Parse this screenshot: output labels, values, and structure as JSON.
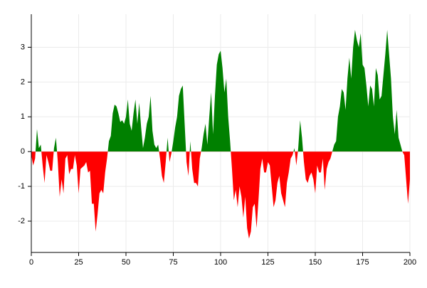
{
  "chart_data": {
    "type": "area",
    "x": [
      0,
      1,
      2,
      3,
      4,
      5,
      6,
      7,
      8,
      9,
      10,
      11,
      12,
      13,
      14,
      15,
      16,
      17,
      18,
      19,
      20,
      21,
      22,
      23,
      24,
      25,
      26,
      27,
      28,
      29,
      30,
      31,
      32,
      33,
      34,
      35,
      36,
      37,
      38,
      39,
      40,
      41,
      42,
      43,
      44,
      45,
      46,
      47,
      48,
      49,
      50,
      51,
      52,
      53,
      54,
      55,
      56,
      57,
      58,
      59,
      60,
      61,
      62,
      63,
      64,
      65,
      66,
      67,
      68,
      69,
      70,
      71,
      72,
      73,
      74,
      75,
      76,
      77,
      78,
      79,
      80,
      81,
      82,
      83,
      84,
      85,
      86,
      87,
      88,
      89,
      90,
      91,
      92,
      93,
      94,
      95,
      96,
      97,
      98,
      99,
      100,
      101,
      102,
      103,
      104,
      105,
      106,
      107,
      108,
      109,
      110,
      111,
      112,
      113,
      114,
      115,
      116,
      117,
      118,
      119,
      120,
      121,
      122,
      123,
      124,
      125,
      126,
      127,
      128,
      129,
      130,
      131,
      132,
      133,
      134,
      135,
      136,
      137,
      138,
      139,
      140,
      141,
      142,
      143,
      144,
      145,
      146,
      147,
      148,
      149,
      150,
      151,
      152,
      153,
      154,
      155,
      156,
      157,
      158,
      159,
      160,
      161,
      162,
      163,
      164,
      165,
      166,
      167,
      168,
      169,
      170,
      171,
      172,
      173,
      174,
      175,
      176,
      177,
      178,
      179,
      180,
      181,
      182,
      183,
      184,
      185,
      186,
      187,
      188,
      189,
      190,
      191,
      192,
      193,
      194,
      195,
      196,
      197,
      198,
      199,
      200
    ],
    "series": [
      {
        "positive_color": "#008000",
        "negative_color": "#ff0000",
        "values": [
          -0.1,
          -0.4,
          -0.2,
          0.65,
          0.1,
          0.2,
          -0.4,
          -0.9,
          -0.1,
          -0.3,
          -0.55,
          -0.55,
          0.1,
          0.4,
          -0.3,
          -1.3,
          -0.8,
          -1.2,
          -0.2,
          -0.1,
          -0.65,
          -0.5,
          -0.5,
          -0.1,
          -0.4,
          -1.2,
          -0.5,
          -0.45,
          -0.4,
          -0.3,
          -0.6,
          -0.55,
          -1.5,
          -1.5,
          -2.3,
          -1.8,
          -1.2,
          -1.1,
          -1.2,
          -0.6,
          -0.2,
          0.3,
          0.45,
          1.1,
          1.35,
          1.3,
          1.1,
          0.85,
          0.9,
          0.8,
          1.0,
          1.5,
          0.8,
          0.6,
          1.1,
          1.5,
          0.8,
          1.4,
          0.7,
          0.1,
          0.4,
          0.8,
          1.0,
          1.6,
          0.6,
          0.2,
          0.1,
          0.2,
          -0.2,
          -0.7,
          -0.9,
          -0.3,
          0.4,
          -0.3,
          -0.05,
          0.3,
          0.7,
          1.0,
          1.6,
          1.8,
          1.9,
          0.8,
          -0.3,
          -0.7,
          0.3,
          -0.5,
          -0.9,
          -0.9,
          -1.0,
          -0.2,
          0.1,
          0.5,
          0.8,
          0.2,
          1.0,
          1.7,
          0.5,
          1.6,
          2.5,
          2.8,
          2.9,
          2.4,
          1.7,
          2.1,
          1.0,
          0.3,
          -0.5,
          -1.4,
          -1.1,
          -1.6,
          -1.0,
          -1.3,
          -1.9,
          -1.3,
          -2.2,
          -2.5,
          -2.3,
          -1.6,
          -1.5,
          -2.2,
          -1.4,
          -0.5,
          -0.2,
          -0.6,
          -0.6,
          -0.3,
          -0.4,
          -1.0,
          -1.6,
          -1.4,
          -0.9,
          -0.7,
          -1.2,
          -1.4,
          -1.6,
          -0.9,
          -0.6,
          -0.2,
          -0.1,
          0.1,
          -0.4,
          0.1,
          0.9,
          0.4,
          -0.3,
          -0.8,
          -0.9,
          -0.7,
          -0.6,
          -0.8,
          -1.2,
          -0.4,
          -0.6,
          -0.6,
          -0.2,
          -1.1,
          -0.5,
          -0.3,
          -0.2,
          0.0,
          0.2,
          0.3,
          1.0,
          1.3,
          1.8,
          1.7,
          1.2,
          2.1,
          2.7,
          2.1,
          3.0,
          3.5,
          3.2,
          3.0,
          3.4,
          2.5,
          2.4,
          1.9,
          1.3,
          1.9,
          1.8,
          1.3,
          2.4,
          2.2,
          1.5,
          1.6,
          2.2,
          2.8,
          3.5,
          2.8,
          2.1,
          1.0,
          0.5,
          1.2,
          0.4,
          0.2,
          0.0,
          -0.1,
          -0.8,
          -1.5,
          -0.8
        ]
      }
    ],
    "xlim": [
      0,
      200
    ],
    "xticks": [
      0,
      25,
      50,
      75,
      100,
      125,
      150,
      175,
      200
    ],
    "ylim": [
      -2.9,
      3.95
    ],
    "yticks": [
      -2,
      -1,
      0,
      1,
      2,
      3
    ],
    "grid": true
  }
}
